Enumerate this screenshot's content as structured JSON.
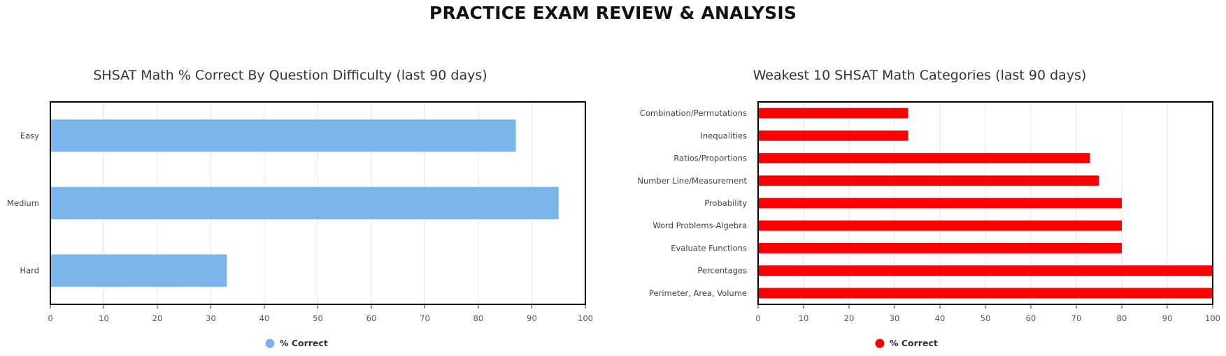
{
  "page": {
    "title": "PRACTICE EXAM REVIEW & ANALYSIS"
  },
  "chart_data": [
    {
      "type": "bar",
      "orientation": "horizontal",
      "title": "SHSAT Math % Correct By Question Difficulty (last 90 days)",
      "xlabel": "",
      "ylabel": "",
      "categories": [
        "Easy",
        "Medium",
        "Hard"
      ],
      "series": [
        {
          "name": "% Correct",
          "color": "#7cb5ec",
          "values": [
            87,
            95,
            33
          ]
        }
      ],
      "xlim": [
        0,
        100
      ],
      "xticks": [
        0,
        10,
        20,
        30,
        40,
        50,
        60,
        70,
        80,
        90,
        100
      ],
      "grid": true,
      "legend": "bottom-center"
    },
    {
      "type": "bar",
      "orientation": "horizontal",
      "title": "Weakest 10 SHSAT Math Categories (last 90 days)",
      "xlabel": "",
      "ylabel": "",
      "categories": [
        "Combination/Permutations",
        "Inequalities",
        "Ratios/Proportions",
        "Number Line/Measurement",
        "Probability",
        "Word Problems-Algebra",
        "Evaluate Functions",
        "Percentages",
        "Perimeter, Area, Volume"
      ],
      "series": [
        {
          "name": "% Correct",
          "color": "#ff0000",
          "values": [
            33,
            33,
            73,
            75,
            80,
            80,
            80,
            100,
            100
          ]
        }
      ],
      "xlim": [
        0,
        100
      ],
      "xticks": [
        0,
        10,
        20,
        30,
        40,
        50,
        60,
        70,
        80,
        90,
        100
      ],
      "grid": true,
      "legend": "bottom-center"
    }
  ]
}
